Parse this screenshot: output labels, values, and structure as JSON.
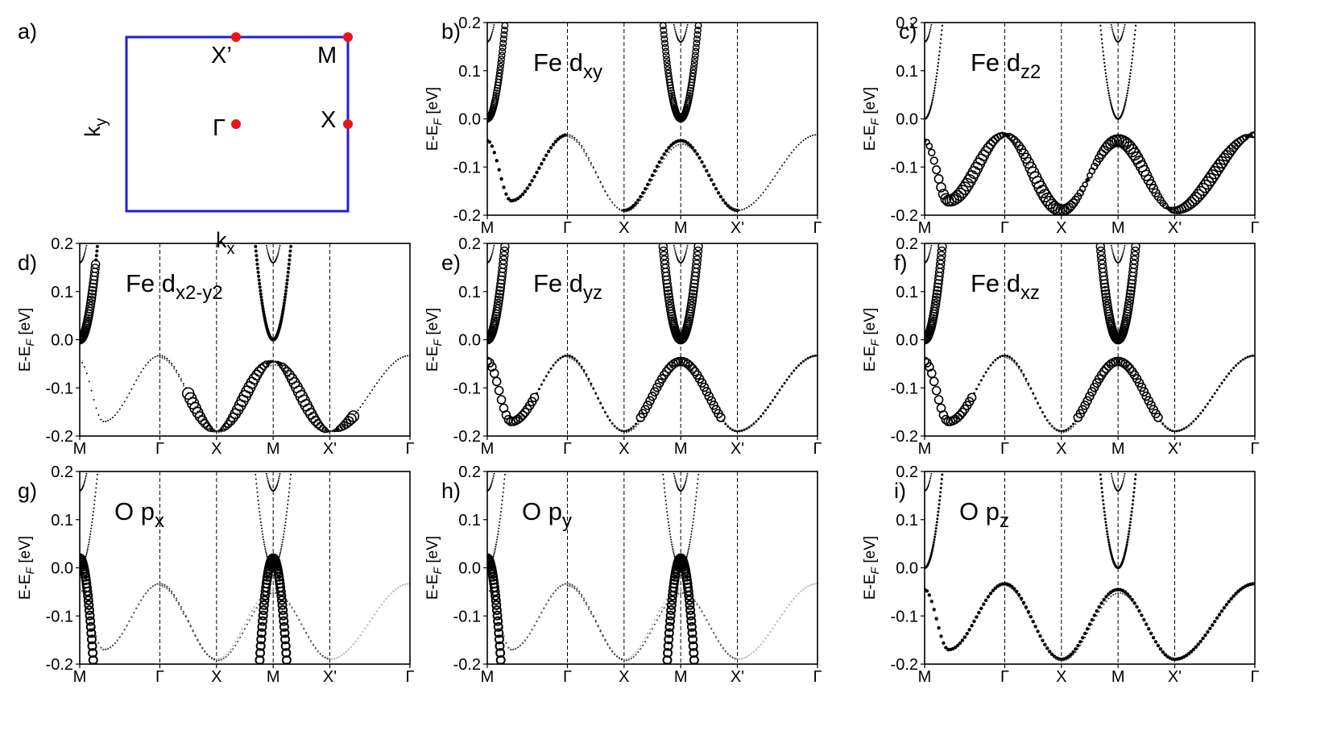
{
  "figure": {
    "bz": {
      "panel_label": "a)",
      "xlabel_main": "k",
      "xlabel_sub": "x",
      "ylabel_main": "k",
      "ylabel_sub": "y",
      "points": [
        {
          "name": "Γ",
          "kx": 0.5,
          "ky": 0.5
        },
        {
          "name": "X",
          "kx": 1.0,
          "ky": 0.5
        },
        {
          "name": "M",
          "kx": 1.0,
          "ky": 1.0
        },
        {
          "name": "X’",
          "kx": 0.5,
          "ky": 1.0
        }
      ],
      "frame_color": "#1f1fd6",
      "point_color": "#e8161b"
    },
    "ylabel_parts": [
      "E-E",
      "F",
      " [eV]"
    ],
    "yticks": [
      "0.2",
      "0.1",
      "0.0",
      "-0.1",
      "-0.2"
    ],
    "xticks": [
      "M",
      "Γ",
      "X",
      "M",
      "X'",
      "Γ"
    ]
  },
  "chart_data": [
    {
      "type": "scatter",
      "panel": "b)",
      "title_main": "Fe d",
      "title_sub": "xy",
      "highlight": "xy",
      "xticks": [
        "M",
        "Γ",
        "X",
        "M",
        "X'",
        "Γ"
      ],
      "xtick_positions": [
        0,
        1,
        1.7071,
        2.4142,
        3.1213,
        4.1213
      ],
      "ylim": [
        -0.2,
        0.2
      ],
      "ylabel": "E-E_F [eV]"
    },
    {
      "type": "scatter",
      "panel": "c)",
      "title_main": "Fe d",
      "title_sub": "z2",
      "highlight": "z2",
      "xticks": [
        "M",
        "Γ",
        "X",
        "M",
        "X'",
        "Γ"
      ],
      "xtick_positions": [
        0,
        1,
        1.7071,
        2.4142,
        3.1213,
        4.1213
      ],
      "ylim": [
        -0.2,
        0.2
      ],
      "ylabel": "E-E_F [eV]"
    },
    {
      "type": "scatter",
      "panel": "d)",
      "title_main": "Fe d",
      "title_sub": "x2-y2",
      "highlight": "x2y2",
      "xticks": [
        "M",
        "Γ",
        "X",
        "M",
        "X'",
        "Γ"
      ],
      "xtick_positions": [
        0,
        1,
        1.7071,
        2.4142,
        3.1213,
        4.1213
      ],
      "ylim": [
        -0.2,
        0.2
      ],
      "ylabel": "E-E_F [eV]"
    },
    {
      "type": "scatter",
      "panel": "e)",
      "title_main": "Fe d",
      "title_sub": "yz",
      "highlight": "yz",
      "xticks": [
        "M",
        "Γ",
        "X",
        "M",
        "X'",
        "Γ"
      ],
      "xtick_positions": [
        0,
        1,
        1.7071,
        2.4142,
        3.1213,
        4.1213
      ],
      "ylim": [
        -0.2,
        0.2
      ],
      "ylabel": "E-E_F [eV]"
    },
    {
      "type": "scatter",
      "panel": "f)",
      "title_main": "Fe d",
      "title_sub": "xz",
      "highlight": "xz",
      "xticks": [
        "M",
        "Γ",
        "X",
        "M",
        "X'",
        "Γ"
      ],
      "xtick_positions": [
        0,
        1,
        1.7071,
        2.4142,
        3.1213,
        4.1213
      ],
      "ylim": [
        -0.2,
        0.2
      ],
      "ylabel": "E-E_F [eV]"
    },
    {
      "type": "scatter",
      "panel": "g)",
      "title_main": "O p",
      "title_sub": "x",
      "highlight": "px",
      "xticks": [
        "M",
        "Γ",
        "X",
        "M",
        "X'",
        "Γ"
      ],
      "xtick_positions": [
        0,
        1,
        1.7071,
        2.4142,
        3.1213,
        4.1213
      ],
      "ylim": [
        -0.2,
        0.2
      ],
      "ylabel": "E-E_F [eV]"
    },
    {
      "type": "scatter",
      "panel": "h)",
      "title_main": "O p",
      "title_sub": "y",
      "highlight": "py",
      "xticks": [
        "M",
        "Γ",
        "X",
        "M",
        "X'",
        "Γ"
      ],
      "xtick_positions": [
        0,
        1,
        1.7071,
        2.4142,
        3.1213,
        4.1213
      ],
      "ylim": [
        -0.2,
        0.2
      ],
      "ylabel": "E-E_F [eV]"
    },
    {
      "type": "scatter",
      "panel": "i)",
      "title_main": "O p",
      "title_sub": "z",
      "highlight": "pz",
      "xticks": [
        "M",
        "Γ",
        "X",
        "M",
        "X'",
        "Γ"
      ],
      "xtick_positions": [
        0,
        1,
        1.7071,
        2.4142,
        3.1213,
        4.1213
      ],
      "ylim": [
        -0.2,
        0.2
      ],
      "ylabel": "E-E_F [eV]"
    }
  ],
  "bands": {
    "description_note": "band energies sampled along k-path (path coordinate units); M-Γ-X-M-X'-Γ",
    "valence_top": -0.033,
    "valence_bottom": -0.195,
    "cone_vertex": 0.0
  }
}
